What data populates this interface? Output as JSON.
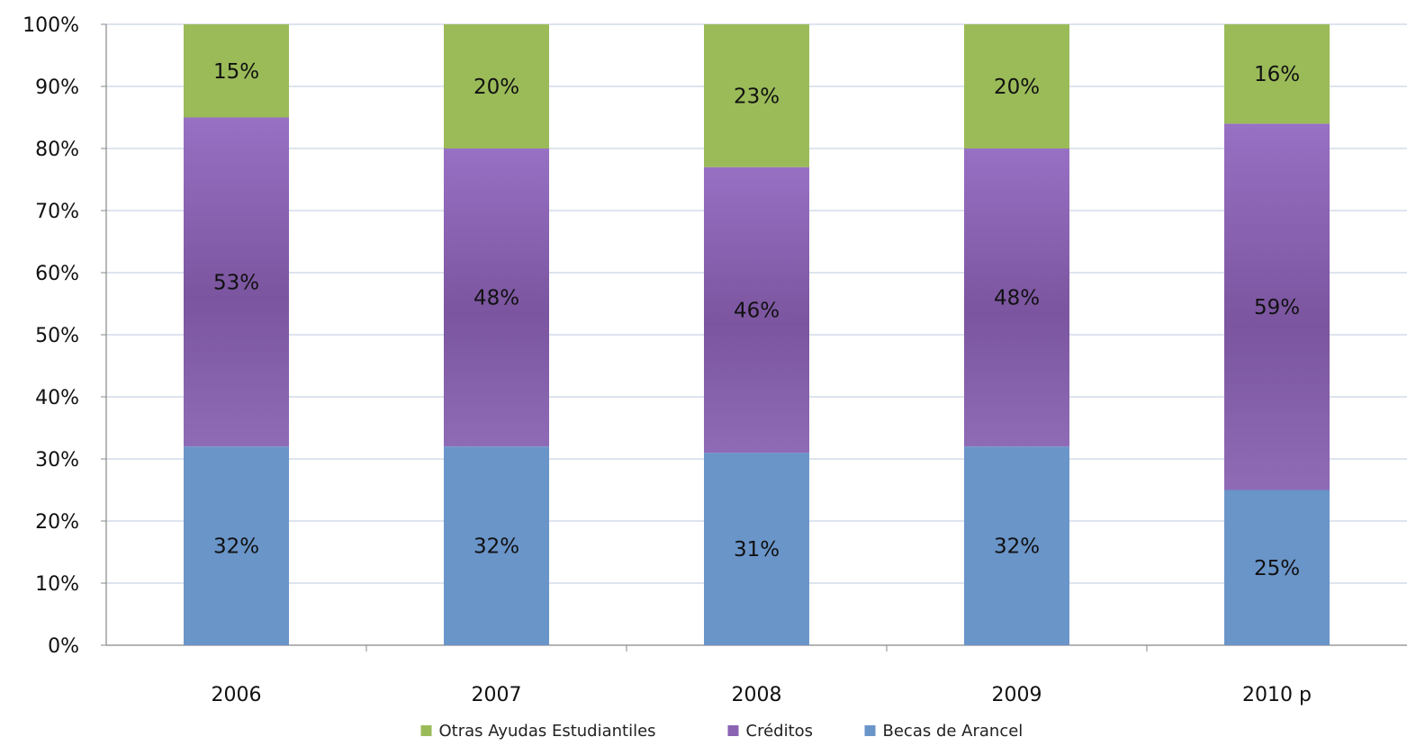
{
  "chart_data": {
    "type": "bar",
    "stacked": true,
    "categories": [
      "2006",
      "2007",
      "2008",
      "2009",
      "2010 p"
    ],
    "series": [
      {
        "name": "Becas de Arancel",
        "color": "#6a95c9",
        "values": [
          32,
          32,
          31,
          32,
          25
        ],
        "labels": [
          "32%",
          "32%",
          "31%",
          "32%",
          "25%"
        ]
      },
      {
        "name": "Créditos",
        "color": "#8a64b3",
        "values": [
          53,
          48,
          46,
          48,
          59
        ],
        "labels": [
          "53%",
          "48%",
          "46%",
          "48%",
          "59%"
        ]
      },
      {
        "name": "Otras Ayudas Estudiantiles",
        "color": "#9bbb59",
        "values": [
          15,
          20,
          23,
          20,
          16
        ],
        "labels": [
          "15%",
          "20%",
          "23%",
          "20%",
          "16%"
        ]
      }
    ],
    "legend_order": [
      "Otras Ayudas Estudiantiles",
      "Créditos",
      "Becas de Arancel"
    ],
    "y_ticks": [
      "0%",
      "10%",
      "20%",
      "30%",
      "40%",
      "50%",
      "60%",
      "70%",
      "80%",
      "90%",
      "100%"
    ],
    "ylim": [
      0,
      100
    ],
    "grid": true,
    "legend_position": "bottom",
    "title": "",
    "xlabel": "",
    "ylabel": ""
  }
}
